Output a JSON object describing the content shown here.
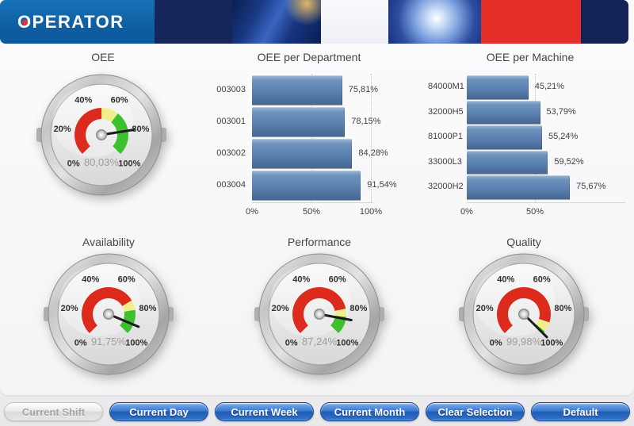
{
  "header": {
    "logo_first": "O",
    "logo_rest": "PERATOR",
    "colors": {
      "logo_bg": "#1065a8",
      "navy": "#15265c",
      "light": "#f4f4f8",
      "red": "#e62e28"
    }
  },
  "chart_data": {
    "gauges": [
      {
        "type": "gauge",
        "title": "OEE",
        "value": 80.03,
        "display": "80,03%",
        "min": 0,
        "max": 100,
        "tick_labels": [
          "0%",
          "20%",
          "40%",
          "60%",
          "80%",
          "100%"
        ],
        "bands": [
          {
            "from": 0,
            "to": 50,
            "color": "#dc2b1c"
          },
          {
            "from": 50,
            "to": 64,
            "color": "#f1ef8d"
          },
          {
            "from": 64,
            "to": 100,
            "color": "#3cc12d"
          }
        ]
      },
      {
        "type": "gauge",
        "title": "Availability",
        "value": 91.75,
        "display": "91,75%",
        "min": 0,
        "max": 100,
        "tick_labels": [
          "0%",
          "20%",
          "40%",
          "60%",
          "80%",
          "100%"
        ],
        "bands": [
          {
            "from": 0,
            "to": 72,
            "color": "#dc2b1c"
          },
          {
            "from": 72,
            "to": 80,
            "color": "#f1ef8d"
          },
          {
            "from": 80,
            "to": 100,
            "color": "#3cc12d"
          }
        ]
      },
      {
        "type": "gauge",
        "title": "Performance",
        "value": 87.24,
        "display": "87,24%",
        "min": 0,
        "max": 100,
        "tick_labels": [
          "0%",
          "20%",
          "40%",
          "60%",
          "80%",
          "100%"
        ],
        "bands": [
          {
            "from": 0,
            "to": 79,
            "color": "#dc2b1c"
          },
          {
            "from": 79,
            "to": 85.5,
            "color": "#f1ef8d"
          },
          {
            "from": 85.5,
            "to": 100,
            "color": "#3cc12d"
          }
        ]
      },
      {
        "type": "gauge",
        "title": "Quality",
        "value": 99.98,
        "display": "99,98%",
        "min": 0,
        "max": 100,
        "tick_labels": [
          "0%",
          "20%",
          "40%",
          "60%",
          "80%",
          "100%"
        ],
        "bands": [
          {
            "from": 0,
            "to": 90,
            "color": "#dc2b1c"
          },
          {
            "from": 90,
            "to": 98,
            "color": "#f1ef8d"
          },
          {
            "from": 98,
            "to": 100,
            "color": "#3cc12d"
          }
        ]
      }
    ],
    "bars": [
      {
        "type": "bar",
        "orientation": "horizontal",
        "title": "OEE per Department",
        "categories": [
          "003003",
          "003001",
          "003002",
          "003004"
        ],
        "values": [
          75.81,
          78.15,
          84.28,
          91.54
        ],
        "value_labels": [
          "75,81%",
          "78,15%",
          "84,28%",
          "91,54%"
        ],
        "xlim": [
          0,
          100
        ],
        "x_ticks": [
          {
            "value": 0,
            "label": "0%"
          },
          {
            "value": 50,
            "label": "50%"
          },
          {
            "value": 100,
            "label": "100%"
          }
        ],
        "gridlines_at": [
          50,
          100
        ],
        "bar_color": "#5d84b2"
      },
      {
        "type": "bar",
        "orientation": "horizontal",
        "title": "OEE per Machine",
        "categories": [
          "84000M1",
          "32000H5",
          "81000P1",
          "33000L3",
          "32000H2"
        ],
        "values": [
          45.21,
          53.79,
          55.24,
          59.52,
          75.67
        ],
        "value_labels": [
          "45,21%",
          "53,79%",
          "55,24%",
          "59,52%",
          "75,67%"
        ],
        "xlim": [
          0,
          100
        ],
        "x_ticks": [
          {
            "value": 0,
            "label": "0%"
          },
          {
            "value": 50,
            "label": "50%"
          }
        ],
        "gridlines_at": [
          50
        ],
        "bar_color": "#5d84b2"
      }
    ]
  },
  "buttons": [
    {
      "label": "Current Shift",
      "enabled": false
    },
    {
      "label": "Current Day",
      "enabled": true
    },
    {
      "label": "Current Week",
      "enabled": true
    },
    {
      "label": "Current Month",
      "enabled": true
    },
    {
      "label": "Clear Selection",
      "enabled": true
    },
    {
      "label": "Default",
      "enabled": true
    }
  ]
}
